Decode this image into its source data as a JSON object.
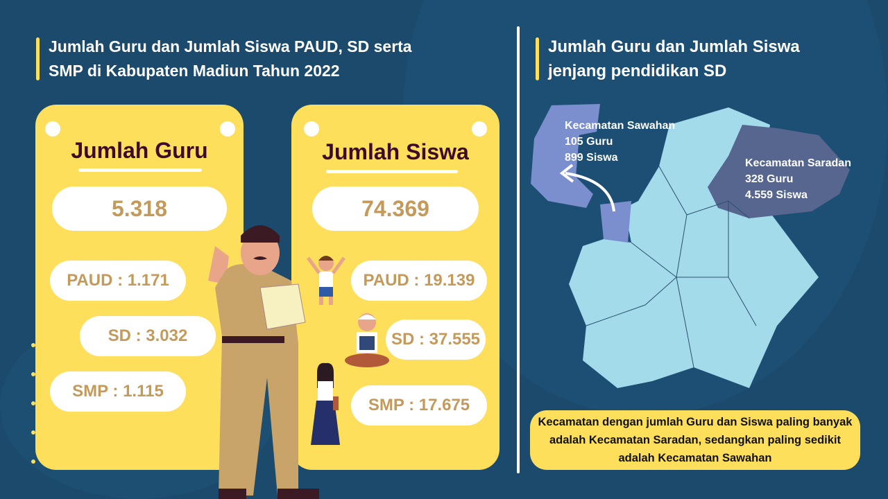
{
  "left_title": {
    "line1": "Jumlah Guru dan Jumlah Siswa PAUD, SD serta",
    "line2": "SMP di Kabupaten Madiun Tahun 2022"
  },
  "right_title": {
    "line1": "Jumlah Guru dan Jumlah Siswa",
    "line2": "jenjang pendidikan SD"
  },
  "guru": {
    "title": "Jumlah Guru",
    "total": "5.318",
    "paud": "PAUD : 1.171",
    "sd": "SD : 3.032",
    "smp": "SMP : 1.115"
  },
  "siswa": {
    "title": "Jumlah Siswa",
    "total": "74.369",
    "paud": "PAUD : 19.139",
    "sd": "SD : 37.555",
    "smp": "SMP : 17.675"
  },
  "map": {
    "sawahan": {
      "name": "Kecamatan Sawahan",
      "guru": "105 Guru",
      "siswa": "899 Siswa",
      "color": "#7b8fcf"
    },
    "saradan": {
      "name": "Kecamatan Saradan",
      "guru": "328 Guru",
      "siswa": "4.559 Siswa",
      "color": "#56668f"
    },
    "base_color": "#a3dbeb"
  },
  "note": "Kecamatan dengan jumlah Guru dan Siswa paling banyak adalah Kecamatan Saradan, sedangkan paling sedikit adalah Kecamatan Sawahan",
  "colors": {
    "background": "#1b4a6d",
    "accent": "#fddf5c",
    "value_text": "#c49a5a",
    "card_title": "#3d0a2a"
  }
}
